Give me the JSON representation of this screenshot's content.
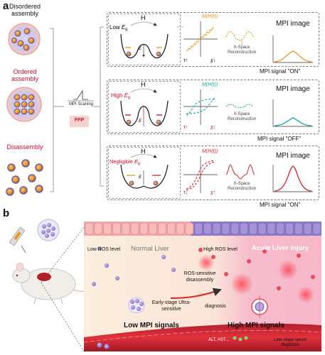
{
  "panel_a": {
    "letter": "a",
    "states": {
      "disordered": "Disordered assembly",
      "ordered": "Ordered assembly",
      "disassembly": "Disassembly"
    },
    "mpi_scanning": "MPI Scaning",
    "ffp": "FFP",
    "rows": [
      {
        "field": "H",
        "energy_label_prefix": "Low",
        "energy_symbol": "E",
        "energy_sub": "B",
        "barrier_label": "E",
        "e_label": "E",
        "m_label": "M(H(t))",
        "tau": "τ↑",
        "chi": "χ↓",
        "xspace": "X-Space Reconstruction",
        "mpi_image": "MPI image",
        "signal": "MPI signal \"ON\"",
        "color": "#e8962a"
      },
      {
        "field": "H",
        "energy_label_prefix": "High",
        "energy_symbol": "E",
        "energy_sub": "B",
        "barrier_label": "E",
        "e_label": "E",
        "m_label": "M(H(t))",
        "tau": "τ↑",
        "chi": "χ↓",
        "xspace": "X-Space Reconstruction",
        "mpi_image": "MPI image",
        "signal": "MPI signal \"OFF\"",
        "color": "#1aa6a0"
      },
      {
        "field": "H",
        "energy_label_prefix": "Negligible",
        "energy_symbol": "E",
        "energy_sub": "B",
        "barrier_label": "E",
        "e_label": "E",
        "m_label": "M(H(t))",
        "tau": "τ↓",
        "chi": "χ↑",
        "xspace": "X-Space Reconstruction",
        "mpi_image": "MPI image",
        "signal": "MPI signal \"ON\"",
        "color": "#d62728"
      }
    ]
  },
  "panel_b": {
    "letter": "b",
    "low_ros": "Low ROS level",
    "normal_liver": "Normal Liver",
    "high_ros": "High ROS level",
    "acute_injury": "Acute Liver Injury",
    "ros_disassembly": "ROS-sensitive disassembly",
    "early_stage": "Early-stage Ultra-sensitive",
    "diagnosis": "diagnosis",
    "low_mpi": "Low MPI signals",
    "high_mpi": "High MPI signals",
    "alt_ast": "ALT, AST...",
    "late_stage": "Late-stage serum diagnosis"
  },
  "colors": {
    "red_label": "#c8102e",
    "orange": "#e8962a",
    "teal": "#1aa6a0",
    "red": "#d62728",
    "ffp_bg": "#f6d2cf",
    "liver_bg": "#fbeedd",
    "injury_bg": "#f7b7c8"
  }
}
